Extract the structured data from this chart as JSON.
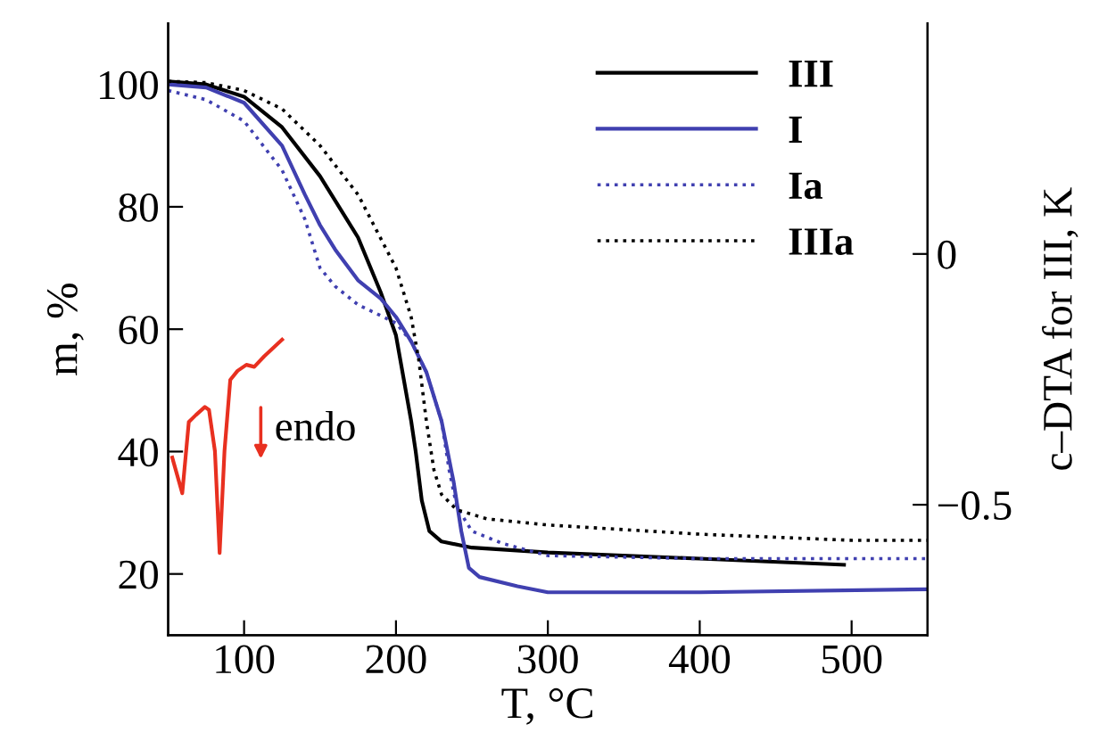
{
  "chart_data": {
    "type": "line",
    "xlabel": "T, °C",
    "ylabel": "m, %",
    "y2label": "c–DTA for III, K",
    "xlim": [
      50,
      550
    ],
    "xticks": [
      100,
      200,
      300,
      400,
      500
    ],
    "ylim": [
      10,
      110
    ],
    "yticks": [
      20,
      40,
      60,
      80,
      100
    ],
    "y2lim": [
      -0.76,
      0.46
    ],
    "y2ticks": [
      {
        "value": 0,
        "label": "0"
      },
      {
        "value": -0.5,
        "label": "−0.5"
      }
    ],
    "grid": false,
    "legend": "top right",
    "marker": "none",
    "annotations": [
      "endo"
    ],
    "series": [
      {
        "name": "III",
        "color": "#000000",
        "line_style": "solid",
        "x": [
          50,
          75,
          100,
          125,
          150,
          175,
          190,
          200,
          205,
          210,
          213,
          217,
          222,
          230,
          250,
          300,
          400,
          495
        ],
        "values": [
          100.5,
          100,
          98,
          93,
          85,
          75,
          66,
          59,
          52,
          45,
          40,
          32,
          27,
          25.3,
          24.3,
          23.5,
          22.5,
          21.5
        ]
      },
      {
        "name": "I",
        "color": "#4040b0",
        "line_style": "solid",
        "x": [
          50,
          75,
          100,
          125,
          140,
          150,
          160,
          175,
          190,
          200,
          210,
          220,
          230,
          238,
          243,
          248,
          255,
          280,
          300,
          400,
          550
        ],
        "values": [
          100,
          99.5,
          97,
          90,
          82,
          77,
          73,
          68,
          65,
          62,
          58,
          53,
          45,
          35,
          27,
          21,
          19.5,
          18,
          17,
          17,
          17.5
        ]
      },
      {
        "name": "Ia",
        "color": "#4040b0",
        "line_style": "dotted",
        "x": [
          50,
          75,
          100,
          125,
          140,
          150,
          160,
          175,
          200,
          210,
          220,
          230,
          235,
          240,
          250,
          270,
          300,
          400,
          550
        ],
        "values": [
          99,
          97.5,
          94,
          86,
          78,
          70,
          67,
          64,
          61,
          58,
          53,
          45,
          37,
          31,
          27,
          25,
          23,
          22.5,
          22.5
        ]
      },
      {
        "name": "IIIa",
        "color": "#000000",
        "line_style": "dotted",
        "x": [
          50,
          75,
          100,
          125,
          150,
          175,
          200,
          210,
          215,
          220,
          225,
          230,
          240,
          260,
          300,
          400,
          500,
          550
        ],
        "values": [
          100.5,
          100.3,
          99,
          96,
          90,
          82,
          70,
          62,
          55,
          45,
          37,
          33,
          30.5,
          29,
          28,
          26.5,
          25.5,
          25.5
        ]
      },
      {
        "color": "#e83020",
        "line_style": "solid",
        "axis": "y2",
        "x": [
          52.7,
          59.3,
          63.6,
          68.3,
          74.2,
          76.9,
          80.8,
          83.9,
          87.1,
          90.9,
          95.7,
          101.5,
          106.7,
          113.3,
          125
        ],
        "values": [
          -0.406,
          -0.477,
          -0.335,
          -0.321,
          -0.305,
          -0.311,
          -0.393,
          -0.596,
          -0.393,
          -0.251,
          -0.233,
          -0.221,
          -0.225,
          -0.204,
          -0.171
        ]
      }
    ]
  }
}
